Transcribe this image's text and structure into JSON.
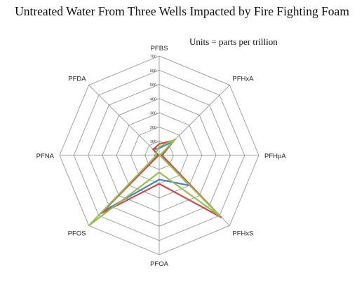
{
  "chart_data": {
    "type": "radar",
    "title": "Untreated Water From Three Wells Impacted by Fire Fighting Foam",
    "annotation": "Units = parts per trillion",
    "categories": [
      "PFBS",
      "PFHxA",
      "PFHpA",
      "PFHxS",
      "PFOA",
      "PFOS",
      "PFNA",
      "PFDA"
    ],
    "radial_ticks": [
      0,
      100,
      200,
      300,
      400,
      500,
      600,
      700
    ],
    "rlim": [
      0,
      700
    ],
    "grid": true,
    "legend": "none",
    "series": [
      {
        "color": "#4f81bd",
        "values": [
          50,
          140,
          10,
          300,
          170,
          560,
          10,
          60
        ]
      },
      {
        "color": "#c0504d",
        "values": [
          80,
          150,
          20,
          620,
          200,
          580,
          5,
          60
        ]
      },
      {
        "color": "#9bbb59",
        "values": [
          60,
          160,
          5,
          610,
          120,
          700,
          20,
          30
        ]
      }
    ]
  }
}
